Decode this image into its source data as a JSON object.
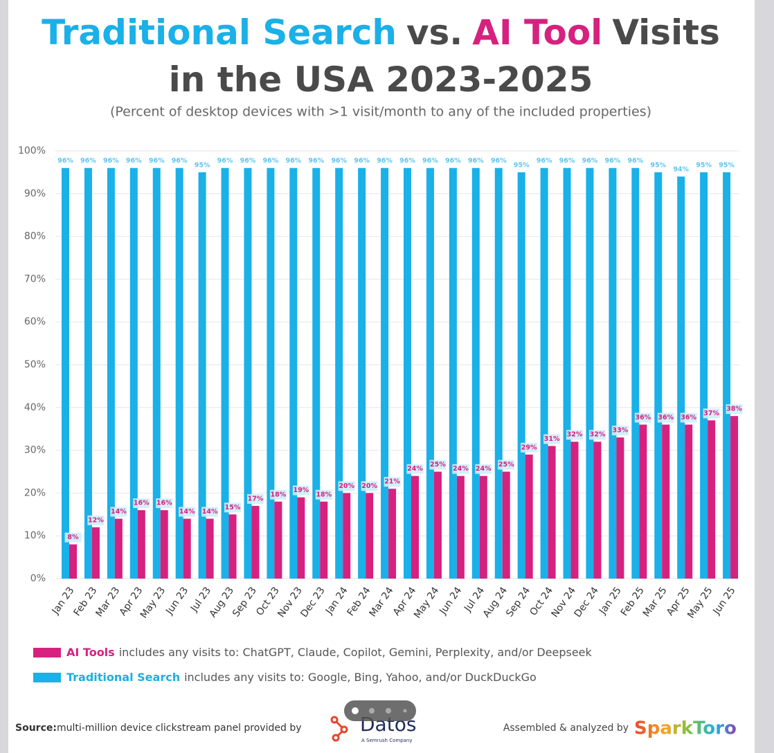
{
  "chart_data": {
    "type": "bar",
    "title": {
      "lines": [
        [
          {
            "text": "Traditional Search",
            "color": "#1ab0e8"
          },
          {
            "text": "vs.",
            "color": "#4a4a4a"
          },
          {
            "text": "AI Tool",
            "color": "#d6217f"
          },
          {
            "text": "Visits",
            "color": "#4a4a4a"
          }
        ],
        [
          {
            "text": "in the USA 2023-2025",
            "color": "#4a4a4a"
          }
        ]
      ]
    },
    "subtitle": "(Percent of desktop devices with >1 visit/month to any of the included properties)",
    "categories": [
      "Jan 23",
      "Feb 23",
      "Mar 23",
      "Apr 23",
      "May 23",
      "Jun 23",
      "Jul 23",
      "Aug 23",
      "Sep 23",
      "Oct 23",
      "Nov 23",
      "Dec 23",
      "Jan 24",
      "Feb 24",
      "Mar 24",
      "Apr 24",
      "May 24",
      "Jun 24",
      "Jul 24",
      "Aug 24",
      "Sep 24",
      "Oct 24",
      "Nov 24",
      "Dec 24",
      "Jan 25",
      "Feb 25",
      "Mar 25",
      "Apr 25",
      "May 25",
      "Jun 25"
    ],
    "series": [
      {
        "name": "Traditional Search",
        "description": "includes any visits to: Google, Bing, Yahoo, and/or DuckDuckGo",
        "color": "#1ab0e8",
        "values": [
          96,
          96,
          96,
          96,
          96,
          96,
          95,
          96,
          96,
          96,
          96,
          96,
          96,
          96,
          96,
          96,
          96,
          96,
          96,
          96,
          95,
          96,
          96,
          96,
          96,
          96,
          95,
          94,
          95,
          95
        ],
        "value_labels": [
          "96%",
          "96%",
          "96%",
          "96%",
          "96%",
          "96%",
          "95%",
          "96%",
          "96%",
          "96%",
          "96%",
          "96%",
          "96%",
          "96%",
          "96%",
          "96%",
          "96%",
          "96%",
          "96%",
          "96%",
          "95%",
          "96%",
          "96%",
          "96%",
          "96%",
          "96%",
          "95%",
          "94%",
          "95%",
          "95%"
        ]
      },
      {
        "name": "AI Tools",
        "description": "includes any visits to: ChatGPT, Claude, Copilot, Gemini, Perplexity, and/or Deepseek",
        "color": "#d6217f",
        "values": [
          8,
          12,
          14,
          16,
          16,
          14,
          14,
          15,
          17,
          18,
          19,
          18,
          20,
          20,
          21,
          24,
          25,
          24,
          24,
          25,
          29,
          31,
          32,
          32,
          33,
          36,
          36,
          36,
          37,
          38
        ],
        "value_labels": [
          "8%",
          "12%",
          "14%",
          "16%",
          "16%",
          "14%",
          "14%",
          "15%",
          "17%",
          "18%",
          "19%",
          "18%",
          "20%",
          "20%",
          "21%",
          "24%",
          "25%",
          "24%",
          "24%",
          "25%",
          "29%",
          "31%",
          "32%",
          "32%",
          "33%",
          "36%",
          "36%",
          "36%",
          "37%",
          "38%"
        ]
      }
    ],
    "ylim": [
      0,
      100
    ],
    "yticks": [
      {
        "value": 0,
        "label": "0%"
      },
      {
        "value": 10,
        "label": "10%"
      },
      {
        "value": 20,
        "label": "20%"
      },
      {
        "value": 30,
        "label": "30%"
      },
      {
        "value": 40,
        "label": "40%"
      },
      {
        "value": 50,
        "label": "50%"
      },
      {
        "value": 60,
        "label": "60%"
      },
      {
        "value": 70,
        "label": "70%"
      },
      {
        "value": 80,
        "label": "80%"
      },
      {
        "value": 90,
        "label": "90%"
      },
      {
        "value": 100,
        "label": "100%"
      }
    ],
    "grid": true,
    "legend_order": [
      1,
      0
    ],
    "footer": {
      "source_label": "Source:",
      "source_text": "multi-million device clickstream panel provided by",
      "provider": "Datos",
      "provider_tagline": "A Semrush Company",
      "credit": "Assembled & analyzed by",
      "brand": "SparkToro"
    }
  }
}
